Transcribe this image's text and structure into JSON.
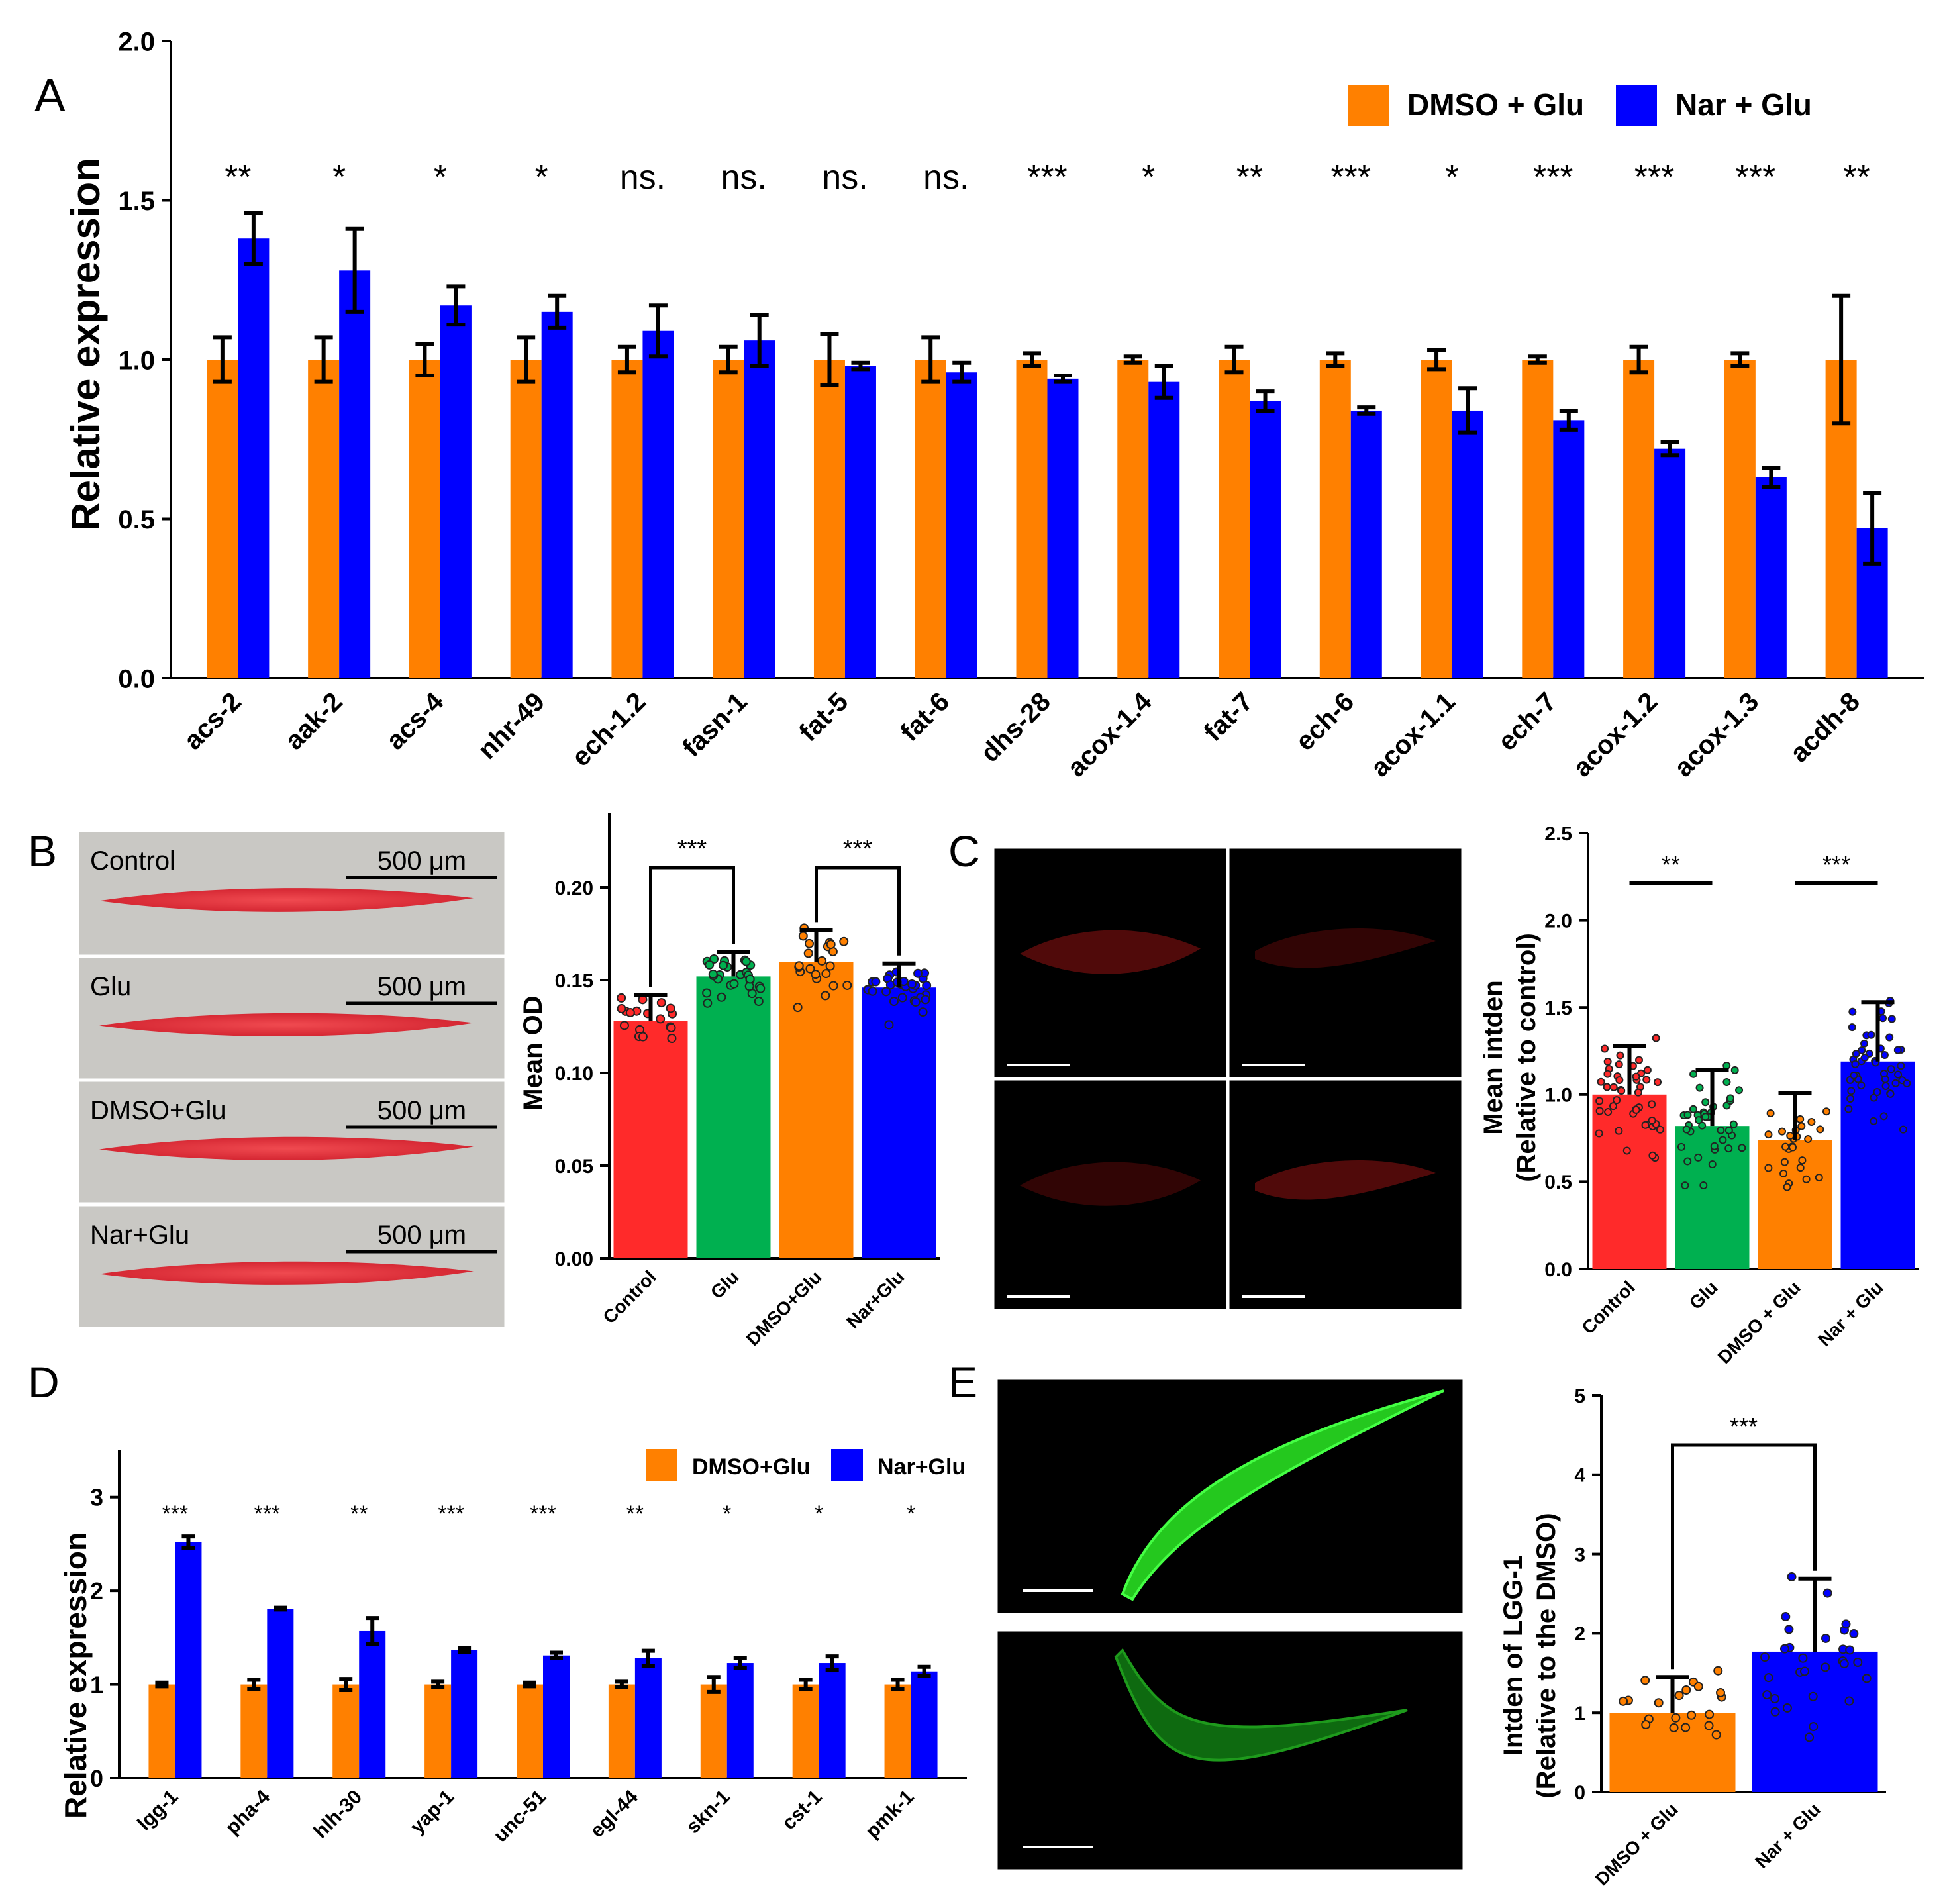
{
  "colors": {
    "orange": "#ff8000",
    "blue": "#0000ff",
    "red": "#ff2a2a",
    "green": "#00b050",
    "panel_bg_B": "#c9c8c4",
    "fluor_dark": "#000000",
    "worm_red": "#e0313c",
    "worm_green": "#22dd22"
  },
  "icons": [
    "worm-oil-red-stain-image",
    "worm-fluorescence-image"
  ],
  "panels": {
    "A": {
      "letter": "A"
    },
    "B": {
      "letter": "B",
      "images": [
        {
          "label": "Control",
          "scale": "500 μm"
        },
        {
          "label": "Glu",
          "scale": "500 μm"
        },
        {
          "label": "DMSO+Glu",
          "scale": "500 μm"
        },
        {
          "label": "Nar+Glu",
          "scale": "500 μm"
        }
      ]
    },
    "C": {
      "letter": "C",
      "images": [
        {
          "label": "Control",
          "scale": "200 μm"
        },
        {
          "label": "Glu",
          "scale": "200 μm"
        },
        {
          "label": "DMSO+Glu",
          "scale": "200 μm"
        },
        {
          "label": "Nar+Glu",
          "scale": "200 μm"
        }
      ]
    },
    "D": {
      "letter": "D"
    },
    "E": {
      "letter": "E",
      "images": [
        {
          "label": "Nar+Glu",
          "scale": "200 μm"
        },
        {
          "label": "DMSO+Glu",
          "scale": "200 μm"
        }
      ]
    }
  },
  "chart_data": [
    {
      "id": "A",
      "type": "bar",
      "ylabel": "Relative expression",
      "ylim": [
        0,
        2.0
      ],
      "yticks": [
        "0.0",
        "0.5",
        "1.0",
        "1.5",
        "2.0"
      ],
      "legend": [
        "DMSO + Glu",
        "Nar + Glu"
      ],
      "legend_position": "top-right",
      "categories": [
        "acs-2",
        "aak-2",
        "acs-4",
        "nhr-49",
        "ech-1.2",
        "fasn-1",
        "fat-5",
        "fat-6",
        "dhs-28",
        "acox-1.4",
        "fat-7",
        "ech-6",
        "acox-1.1",
        "ech-7",
        "acox-1.2",
        "acox-1.3",
        "acdh-8"
      ],
      "significance": [
        "**",
        "*",
        "*",
        "*",
        "ns.",
        "ns.",
        "ns.",
        "ns.",
        "***",
        "*",
        "**",
        "***",
        "*",
        "***",
        "***",
        "***",
        "**"
      ],
      "series": [
        {
          "name": "DMSO + Glu",
          "values": [
            1.0,
            1.0,
            1.0,
            1.0,
            1.0,
            1.0,
            1.0,
            1.0,
            1.0,
            1.0,
            1.0,
            1.0,
            1.0,
            1.0,
            1.0,
            1.0,
            1.0
          ],
          "errors": [
            0.07,
            0.07,
            0.05,
            0.07,
            0.04,
            0.04,
            0.08,
            0.07,
            0.02,
            0.01,
            0.04,
            0.02,
            0.03,
            0.01,
            0.04,
            0.02,
            0.2
          ]
        },
        {
          "name": "Nar + Glu",
          "values": [
            1.38,
            1.28,
            1.17,
            1.15,
            1.09,
            1.06,
            0.98,
            0.96,
            0.94,
            0.93,
            0.87,
            0.84,
            0.84,
            0.81,
            0.72,
            0.63,
            0.47
          ],
          "errors": [
            0.08,
            0.13,
            0.06,
            0.05,
            0.08,
            0.08,
            0.01,
            0.03,
            0.01,
            0.05,
            0.03,
            0.01,
            0.07,
            0.03,
            0.02,
            0.03,
            0.11
          ]
        }
      ]
    },
    {
      "id": "B",
      "type": "bar",
      "ylabel": "Mean OD",
      "ylim": [
        0,
        0.24
      ],
      "yticks": [
        "0.00",
        "0.05",
        "0.10",
        "0.15",
        "0.20"
      ],
      "categories": [
        "Control",
        "Glu",
        "DMSO+Glu",
        "Nar+Glu"
      ],
      "values": [
        0.128,
        0.152,
        0.16,
        0.146
      ],
      "errors": [
        0.014,
        0.013,
        0.017,
        0.013
      ],
      "comparisons": [
        {
          "from": 0,
          "to": 1,
          "label": "***"
        },
        {
          "from": 2,
          "to": 3,
          "label": "***"
        }
      ]
    },
    {
      "id": "C",
      "type": "bar",
      "ylabel": "Mean intden",
      "ylabel2": "(Relative to control)",
      "ylim": [
        0,
        2.5
      ],
      "yticks": [
        "0.0",
        "0.5",
        "1.0",
        "1.5",
        "2.0",
        "2.5"
      ],
      "categories": [
        "Control",
        "Glu",
        "DMSO + Glu",
        "Nar + Glu"
      ],
      "values": [
        1.0,
        0.82,
        0.74,
        1.19
      ],
      "errors": [
        0.28,
        0.32,
        0.27,
        0.34
      ],
      "comparisons": [
        {
          "from": 0,
          "to": 1,
          "label": "**"
        },
        {
          "from": 2,
          "to": 3,
          "label": "***"
        }
      ]
    },
    {
      "id": "D",
      "type": "bar",
      "ylabel": "Relative expression",
      "ylim": [
        0,
        3.5
      ],
      "yticks": [
        "0",
        "1",
        "2",
        "3"
      ],
      "legend": [
        "DMSO+Glu",
        "Nar+Glu"
      ],
      "legend_position": "top-right",
      "categories": [
        "lgg-1",
        "pha-4",
        "hlh-30",
        "yap-1",
        "unc-51",
        "egl-44",
        "skn-1",
        "cst-1",
        "pmk-1"
      ],
      "significance": [
        "***",
        "***",
        "**",
        "***",
        "***",
        "**",
        "*",
        "*",
        "*"
      ],
      "series": [
        {
          "name": "DMSO+Glu",
          "values": [
            1,
            1,
            1,
            1,
            1,
            1,
            1,
            1,
            1
          ],
          "errors": [
            0.02,
            0.05,
            0.06,
            0.03,
            0.02,
            0.03,
            0.08,
            0.05,
            0.05
          ]
        },
        {
          "name": "Nar+Glu",
          "values": [
            2.52,
            1.81,
            1.57,
            1.37,
            1.31,
            1.28,
            1.23,
            1.23,
            1.14
          ],
          "errors": [
            0.06,
            0.01,
            0.14,
            0.02,
            0.03,
            0.08,
            0.05,
            0.07,
            0.05
          ]
        }
      ]
    },
    {
      "id": "E",
      "type": "bar",
      "ylabel": "Intden of LGG-1",
      "ylabel2": "(Relative to the DMSO)",
      "ylim": [
        0,
        5
      ],
      "yticks": [
        "0",
        "1",
        "2",
        "3",
        "4",
        "5"
      ],
      "categories": [
        "DMSO + Glu",
        "Nar + Glu"
      ],
      "values": [
        1.0,
        1.77
      ],
      "errors": [
        0.45,
        0.92
      ],
      "comparisons": [
        {
          "from": 0,
          "to": 1,
          "label": "***"
        }
      ]
    }
  ]
}
